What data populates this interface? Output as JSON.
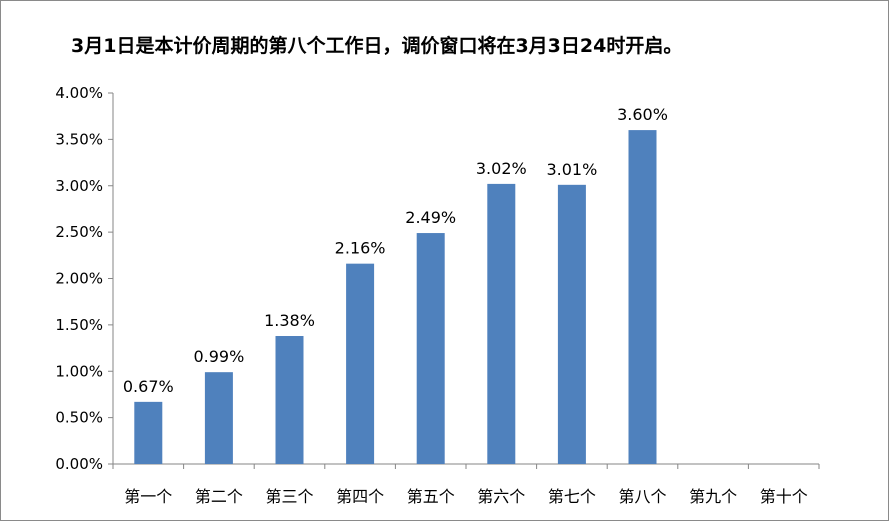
{
  "chart_data": {
    "type": "bar",
    "title": "3月1日是本计价周期的第八个工作日，调价窗口将在3月3日24时开启。",
    "xlabel": "",
    "ylabel": "",
    "categories": [
      "第一个",
      "第二个",
      "第三个",
      "第四个",
      "第五个",
      "第六个",
      "第七个",
      "第八个",
      "第九个",
      "第十个"
    ],
    "values": [
      0.67,
      0.99,
      1.38,
      2.16,
      2.49,
      3.02,
      3.01,
      3.6,
      null,
      null
    ],
    "data_labels": [
      "0.67%",
      "0.99%",
      "1.38%",
      "2.16%",
      "2.49%",
      "3.02%",
      "3.01%",
      "3.60%",
      "",
      ""
    ],
    "ylim": [
      0,
      4.0
    ],
    "yticks": [
      0,
      0.5,
      1.0,
      1.5,
      2.0,
      2.5,
      3.0,
      3.5,
      4.0
    ],
    "ytick_labels": [
      "0.00%",
      "0.50%",
      "1.00%",
      "1.50%",
      "2.00%",
      "2.50%",
      "3.00%",
      "3.50%",
      "4.00%"
    ],
    "grid": false,
    "legend": "none",
    "bar_color": "#4f81bd",
    "axis_color": "#868686"
  }
}
